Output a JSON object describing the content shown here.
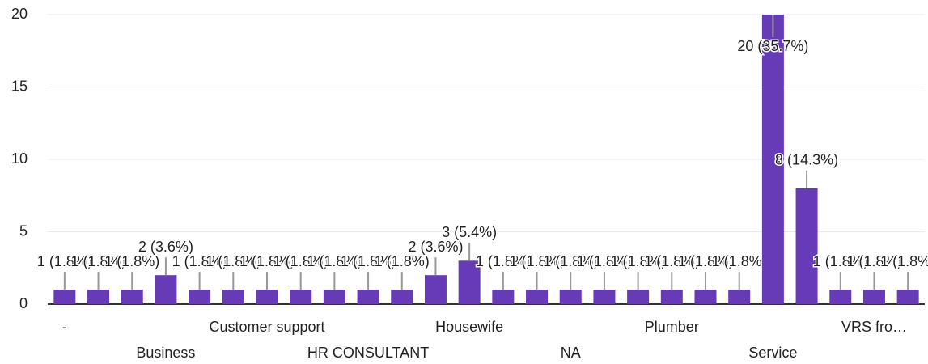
{
  "chart_data": {
    "type": "bar",
    "categories": [
      "-",
      null,
      null,
      "Business",
      null,
      null,
      "Customer support",
      null,
      null,
      "HR CONSULTANT",
      null,
      null,
      "Housewife",
      null,
      null,
      "NA",
      null,
      null,
      "Plumber",
      null,
      null,
      "Service",
      null,
      null,
      "VRS fro…",
      null
    ],
    "values": [
      1,
      1,
      1,
      2,
      1,
      1,
      1,
      1,
      1,
      1,
      1,
      2,
      3,
      1,
      1,
      1,
      1,
      1,
      1,
      1,
      1,
      20,
      8,
      1,
      1,
      1
    ],
    "value_labels": [
      "1 (1.8%)",
      "1 (1.8%)",
      "1 (1.8%)",
      "2 (3.6%)",
      "1 (1.8%)",
      "1 (1.8%)",
      "1 (1.8%)",
      "1 (1.8%)",
      "1 (1.8%)",
      "1 (1.8%)",
      "1 (1.8%)",
      "2 (3.6%)",
      "3 (5.4%)",
      "1 (1.8%)",
      "1 (1.8%)",
      "1 (1.8%)",
      "1 (1.8%)",
      "1 (1.8%)",
      "1 (1.8%)",
      "1 (1.8%)",
      "1 (1.8%)",
      "20 (35.7%)",
      "8 (14.3%)",
      "1 (1.8%)",
      "1 (1.8%)",
      "1 (1.8%)"
    ],
    "color": "#673ab7",
    "ylim": [
      0,
      20
    ],
    "yticks": [
      0,
      5,
      10,
      15,
      20
    ],
    "grid": true
  }
}
